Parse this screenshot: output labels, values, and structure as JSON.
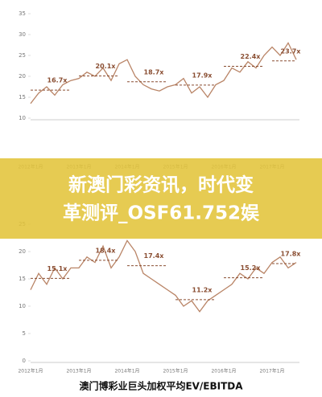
{
  "chart_data": [
    {
      "type": "line",
      "categories": [
        "2012年1月",
        null,
        null,
        null,
        null,
        null,
        "2013年1月",
        null,
        null,
        null,
        null,
        null,
        "2014年1月",
        null,
        null,
        null,
        null,
        null,
        "2015年1月",
        null,
        null,
        null,
        null,
        null,
        "2016年1月",
        null,
        null,
        null,
        null,
        null,
        "2017年1月",
        null,
        null,
        null
      ],
      "series": [
        {
          "color": "#b98466",
          "values": [
            13.5,
            16,
            17.5,
            15.5,
            18,
            19,
            19.5,
            21,
            20,
            22,
            19,
            23,
            24,
            20,
            18,
            17,
            16.5,
            17.5,
            18,
            19.5,
            16,
            17.5,
            15,
            18,
            19,
            22,
            21,
            23.5,
            22,
            25,
            27,
            25,
            28,
            24
          ]
        }
      ],
      "averages": {
        "values": [
          16.7,
          20.1,
          18.7,
          17.9,
          22.4,
          23.7
        ],
        "value_labels": [
          "16.7x",
          "20.1x",
          "18.7x",
          "17.9x",
          "22.4x",
          "23.7x"
        ],
        "color": "#8a4e32"
      },
      "ylim": [
        10,
        35
      ],
      "yticks": [
        10,
        15,
        20,
        25,
        30,
        35
      ]
    },
    {
      "type": "line",
      "title": "澳门博彩业巨头加权平均EV/EBITDA",
      "categories": [
        "2012年1月",
        null,
        null,
        null,
        null,
        null,
        "2013年1月",
        null,
        null,
        null,
        null,
        null,
        "2014年1月",
        null,
        null,
        null,
        null,
        null,
        "2015年1月",
        null,
        null,
        null,
        null,
        null,
        "2016年1月",
        null,
        null,
        null,
        null,
        null,
        "2017年1月",
        null,
        null,
        null
      ],
      "series": [
        {
          "color": "#b98466",
          "values": [
            13,
            16,
            14,
            17,
            15,
            17,
            17,
            19,
            18,
            21,
            17,
            19,
            22,
            20,
            16,
            15,
            14,
            13,
            12,
            10,
            11,
            9,
            11,
            12,
            13,
            14,
            16,
            15,
            17,
            16,
            18,
            19,
            17,
            18
          ]
        }
      ],
      "averages": {
        "values": [
          15.1,
          18.4,
          17.4,
          11.2,
          15.2,
          17.8
        ],
        "value_labels": [
          "15.1x",
          "18.4x",
          "17.4x",
          "11.2x",
          "15.2x",
          "17.8x"
        ],
        "color": "#8a4e32"
      },
      "ylim": [
        0,
        25
      ],
      "yticks": [
        0,
        5,
        10,
        15,
        20,
        25
      ]
    }
  ],
  "banner": {
    "lines": [
      "新澳门彩资讯，时代变",
      "革测评_OSF61.752娱"
    ]
  }
}
